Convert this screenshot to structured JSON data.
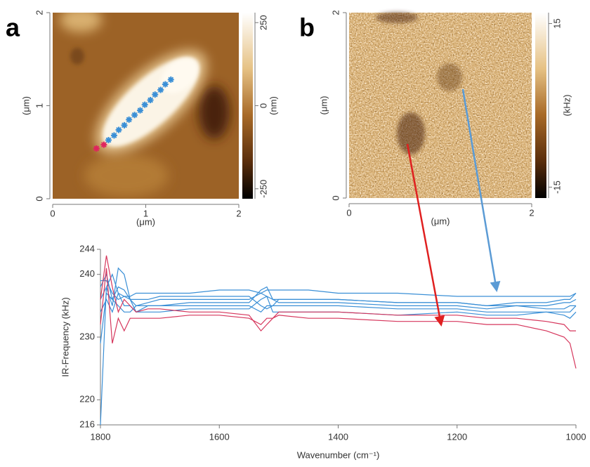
{
  "chart_data": [
    {
      "type": "image",
      "label": "a",
      "xlim": [
        0,
        2
      ],
      "ylim": [
        0,
        2
      ],
      "xticks": [
        0,
        1,
        2
      ],
      "yticks": [
        0,
        1,
        2
      ],
      "xlabel": "(μm)",
      "ylabel": "(μm)",
      "colorbar": {
        "lim": [
          -280,
          280
        ],
        "ticks": [
          -250,
          0,
          250
        ],
        "label": "(nm)"
      },
      "markers": [
        {
          "color": "#e0245e",
          "x": [
            0.47,
            0.55
          ],
          "y": [
            0.54,
            0.58
          ]
        },
        {
          "color": "#3a8fd6",
          "x": [
            0.6,
            0.66,
            0.71,
            0.77,
            0.82,
            0.88,
            0.94,
            0.99,
            1.05,
            1.1,
            1.16,
            1.21,
            1.27
          ],
          "y": [
            0.63,
            0.68,
            0.74,
            0.79,
            0.85,
            0.9,
            0.95,
            1.01,
            1.06,
            1.12,
            1.17,
            1.23,
            1.28
          ]
        }
      ]
    },
    {
      "type": "image",
      "label": "b",
      "xlim": [
        0,
        2
      ],
      "ylim": [
        0,
        2
      ],
      "xticks": [
        0,
        2
      ],
      "yticks": [
        0,
        2
      ],
      "xlabel": "(μm)",
      "ylabel": "(μm)",
      "colorbar": {
        "lim": [
          -17,
          17
        ],
        "ticks": [
          -15,
          15
        ],
        "label": "(kHz)"
      }
    },
    {
      "type": "line",
      "xlabel": "Wavenumber (cm⁻¹)",
      "ylabel": "IR-Frequency (kHz)",
      "xlim": [
        1800,
        1000
      ],
      "ylim": [
        216,
        244
      ],
      "xticks": [
        1800,
        1600,
        1400,
        1200,
        1000
      ],
      "yticks": [
        216,
        220,
        230,
        240,
        244
      ],
      "x": [
        1800,
        1790,
        1780,
        1770,
        1760,
        1750,
        1740,
        1720,
        1700,
        1650,
        1600,
        1550,
        1530,
        1520,
        1510,
        1500,
        1450,
        1400,
        1300,
        1200,
        1150,
        1100,
        1050,
        1020,
        1010,
        1000
      ],
      "series": [
        {
          "color": "#3a8fd6",
          "values": [
            216,
            238,
            240,
            237,
            236.5,
            236.5,
            237,
            237,
            237,
            237,
            237.5,
            237.5,
            237,
            237.5,
            237.5,
            237.5,
            237.5,
            237,
            237,
            236.5,
            236.5,
            236.5,
            236.5,
            236.5,
            236.5,
            237
          ]
        },
        {
          "color": "#3a8fd6",
          "values": [
            229,
            237,
            236,
            238,
            237.5,
            236,
            235,
            235.5,
            236,
            236,
            236,
            236,
            237,
            236.5,
            236,
            236,
            236,
            236,
            235.5,
            235.5,
            235,
            235.5,
            235.5,
            236,
            236,
            237
          ]
        },
        {
          "color": "#3a8fd6",
          "values": [
            236,
            238,
            235,
            241,
            240,
            236,
            234,
            235,
            235,
            235.5,
            235.5,
            235.5,
            237.5,
            238,
            236,
            235.5,
            235.5,
            235.5,
            235,
            235,
            234.5,
            235,
            234.5,
            234.5,
            235,
            235
          ]
        },
        {
          "color": "#3a8fd6",
          "values": [
            238,
            240,
            236,
            235,
            234,
            234,
            235,
            235,
            235,
            235,
            235,
            235,
            234,
            235,
            235,
            235,
            235,
            235,
            234.5,
            234.5,
            234,
            234,
            234,
            234,
            234,
            235
          ]
        },
        {
          "color": "#3a8fd6",
          "values": [
            234,
            236,
            234,
            237,
            235,
            235,
            234,
            234,
            234,
            234.5,
            234.5,
            234.5,
            236,
            236.5,
            234,
            234,
            234,
            234,
            233.5,
            234,
            233.5,
            233.5,
            234,
            233.5,
            233,
            234
          ]
        },
        {
          "color": "#3a8fd6",
          "values": [
            239,
            239,
            237,
            236,
            236.5,
            236,
            236,
            236,
            236.5,
            236.5,
            236.5,
            236.5,
            235,
            234.5,
            235,
            236,
            236,
            236,
            235.5,
            235.5,
            235,
            235,
            235,
            235.5,
            235.5,
            236
          ]
        },
        {
          "color": "#d6365c",
          "values": [
            236,
            243,
            238,
            234,
            236,
            235,
            234,
            234.5,
            234.5,
            234,
            234,
            233.5,
            231,
            232,
            233,
            234,
            234,
            234,
            233.5,
            233.5,
            233,
            233,
            232.5,
            232,
            231,
            231
          ]
        },
        {
          "color": "#d6365c",
          "values": [
            232,
            241,
            229,
            233,
            231,
            233,
            233,
            233,
            233,
            233.5,
            233.5,
            233,
            232,
            233,
            233,
            233.5,
            233,
            233,
            232.5,
            232.5,
            232,
            232,
            231,
            230,
            229,
            225
          ]
        }
      ]
    }
  ]
}
